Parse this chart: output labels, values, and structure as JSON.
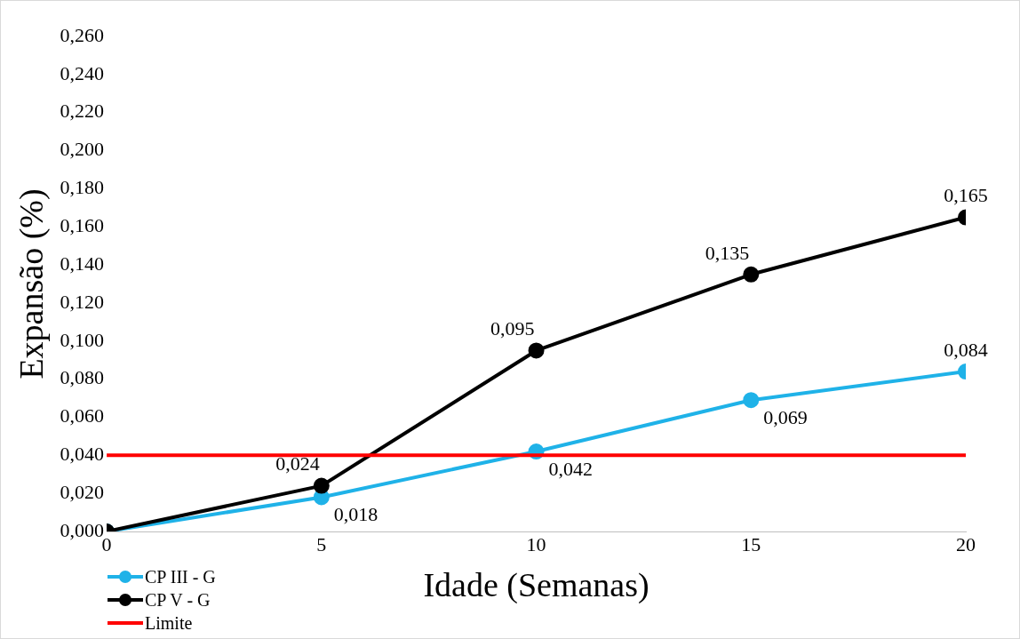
{
  "chart_data": {
    "type": "line",
    "xlabel": "Idade (Semanas)",
    "ylabel": "Expansão (%)",
    "x": [
      0,
      5,
      10,
      15,
      20
    ],
    "xlim": [
      0,
      20
    ],
    "xticks": [
      0,
      5,
      10,
      15,
      20
    ],
    "ylim": [
      0,
      0.26
    ],
    "yticks": [
      {
        "value": 0,
        "label": "0,000"
      },
      {
        "value": 0.02,
        "label": "0,020"
      },
      {
        "value": 0.04,
        "label": "0,040"
      },
      {
        "value": 0.06,
        "label": "0,060"
      },
      {
        "value": 0.08,
        "label": "0,080"
      },
      {
        "value": 0.1,
        "label": "0,100"
      },
      {
        "value": 0.12,
        "label": "0,120"
      },
      {
        "value": 0.14,
        "label": "0,140"
      },
      {
        "value": 0.16,
        "label": "0,160"
      },
      {
        "value": 0.18,
        "label": "0,180"
      },
      {
        "value": 0.2,
        "label": "0,200"
      },
      {
        "value": 0.22,
        "label": "0,220"
      },
      {
        "value": 0.24,
        "label": "0,240"
      },
      {
        "value": 0.26,
        "label": "0,260"
      }
    ],
    "series": [
      {
        "name": "CP III - G",
        "color": "#1fb2e8",
        "values": [
          0,
          0.018,
          0.042,
          0.069,
          0.084
        ],
        "value_labels": [
          null,
          "0,018",
          "0,042",
          "0,069",
          "0,084"
        ],
        "marker": "circle"
      },
      {
        "name": "CP V - G",
        "color": "#000000",
        "values": [
          0,
          0.024,
          0.095,
          0.135,
          0.165
        ],
        "value_labels": [
          null,
          "0,024",
          "0,095",
          "0,135",
          "0,165"
        ],
        "marker": "circle"
      },
      {
        "name": "Limite",
        "color": "#ff0000",
        "values": [
          0.04,
          0.04,
          0.04,
          0.04,
          0.04
        ],
        "marker": "none"
      }
    ],
    "grid": false,
    "legend": "bottom left",
    "line_style": "solid"
  }
}
